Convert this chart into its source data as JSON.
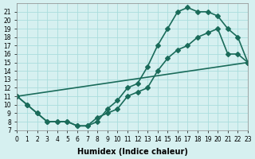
{
  "xlabel": "Humidex (Indice chaleur)",
  "ylabel": "",
  "bg_color": "#d6f0f0",
  "line_color": "#1a6b5a",
  "grid_color": "#aadddd",
  "xlim": [
    0,
    23
  ],
  "ylim": [
    7,
    22
  ],
  "xticks": [
    0,
    1,
    2,
    3,
    4,
    5,
    6,
    7,
    8,
    9,
    10,
    11,
    12,
    13,
    14,
    15,
    16,
    17,
    18,
    19,
    20,
    21,
    22,
    23
  ],
  "yticks": [
    7,
    8,
    9,
    10,
    11,
    12,
    13,
    14,
    15,
    16,
    17,
    18,
    19,
    20,
    21
  ],
  "line1_x": [
    0,
    1,
    2,
    3,
    4,
    5,
    6,
    7,
    8,
    9,
    10,
    11,
    12,
    13,
    14,
    15,
    16,
    17,
    18,
    19,
    20,
    21,
    22,
    23
  ],
  "line1_y": [
    11,
    10,
    9,
    8,
    8,
    8,
    7.5,
    7.5,
    8,
    9.5,
    10.5,
    12,
    12.5,
    14.5,
    17,
    19,
    21,
    21.5,
    21,
    21,
    20.5,
    19,
    18,
    15
  ],
  "line2_x": [
    0,
    1,
    2,
    3,
    4,
    5,
    6,
    7,
    8,
    9,
    10,
    11,
    12,
    13,
    14,
    15,
    16,
    17,
    18,
    19,
    20,
    21,
    22,
    23
  ],
  "line2_y": [
    11,
    10,
    9,
    8,
    8,
    8,
    7.5,
    7.5,
    8.5,
    9,
    9.5,
    11,
    11.5,
    12,
    14,
    15.5,
    16.5,
    17,
    18,
    18.5,
    19,
    16,
    16,
    15
  ],
  "line3_x": [
    0,
    23
  ],
  "line3_y": [
    11,
    15
  ],
  "marker": "D",
  "markersize": 3,
  "linewidth": 1.2,
  "title_fontsize": 7,
  "axis_fontsize": 7,
  "tick_fontsize": 5.5
}
